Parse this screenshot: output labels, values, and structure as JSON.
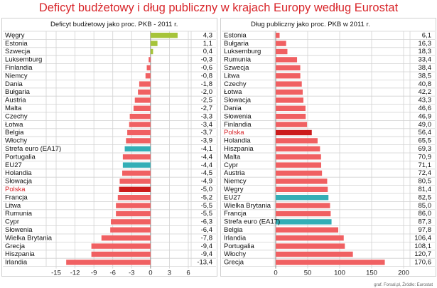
{
  "title": "Deficyt budżetowy i dług publiczny w krajach Europy według Eurostat",
  "source": "graf. Forsal.pl, Źródło: Eurostat",
  "colors": {
    "title": "#d8252a",
    "normal": "#f06062",
    "poland": "#cc1b1b",
    "aggregate": "#33aeb6",
    "positive": "#a6c43a",
    "highlight_label": "#d8252a"
  },
  "chart_data": [
    {
      "type": "bar",
      "orientation": "horizontal",
      "title": "Deficyt budżetowy jako proc. PKB - 2011 r.",
      "xlim": [
        -15,
        6
      ],
      "xticks": [
        -15,
        -12,
        -9,
        -6,
        -3,
        0,
        3,
        6
      ],
      "xtick_labels": [
        "-15",
        "-12",
        "-9",
        "-6",
        "-3",
        "0",
        "3",
        "6"
      ],
      "grid": true,
      "categories": [
        "Węgry",
        "Estonia",
        "Szwecja",
        "Luksemburg",
        "Finlandia",
        "Niemcy",
        "Dania",
        "Bułgaria",
        "Austria",
        "Malta",
        "Czechy",
        "Łotwa",
        "Belgia",
        "Włochy",
        "Strefa euro (EA17)",
        "Portugalia",
        "EU27",
        "Holandia",
        "Słowacja",
        "Polska",
        "Francja",
        "Litwa",
        "Rumunia",
        "Cypr",
        "Słowenia",
        "Wielka Brytania",
        "Grecja",
        "Hiszpania",
        "Irlandia"
      ],
      "values": [
        4.3,
        1.1,
        0.4,
        -0.3,
        -0.6,
        -0.8,
        -1.8,
        -2.0,
        -2.5,
        -2.7,
        -3.3,
        -3.4,
        -3.7,
        -3.9,
        -4.1,
        -4.4,
        -4.4,
        -4.5,
        -4.9,
        -5.0,
        -5.2,
        -5.5,
        -5.5,
        -6.3,
        -6.4,
        -7.8,
        -9.4,
        -9.4,
        -13.4
      ],
      "value_labels": [
        "4,3",
        "1,1",
        "0,4",
        "-0,3",
        "-0,6",
        "-0,8",
        "-1,8",
        "-2,0",
        "-2,5",
        "-2,7",
        "-3,3",
        "-3,4",
        "-3,7",
        "-3,9",
        "-4,1",
        "-4,4",
        "-4,4",
        "-4,5",
        "-4,9",
        "-5,0",
        "-5,2",
        "-5,5",
        "-5,5",
        "-6,3",
        "-6,4",
        "-7,8",
        "-9,4",
        "-9,4",
        "-13,4"
      ],
      "highlight": "Polska",
      "aggregates": [
        "Strefa euro (EA17)",
        "EU27"
      ]
    },
    {
      "type": "bar",
      "orientation": "horizontal",
      "title": "Dług publiczny jako proc. PKB w 2011 r.",
      "xlim": [
        0,
        200
      ],
      "xticks": [
        0,
        50,
        100,
        150,
        200
      ],
      "xtick_labels": [
        "0",
        "50",
        "100",
        "150",
        "200"
      ],
      "grid": true,
      "categories": [
        "Estonia",
        "Bułgaria",
        "Luksemburg",
        "Rumunia",
        "Szwecja",
        "Litwa",
        "Czechy",
        "Łotwa",
        "Słowacja",
        "Dania",
        "Słowenia",
        "Finlandia",
        "Polska",
        "Holandia",
        "Hiszpania",
        "Malta",
        "Cypr",
        "Austria",
        "Niemcy",
        "Węgry",
        "EU27",
        "Wielka Brytania",
        "Francja",
        "Strefa euro (EA17)",
        "Belgia",
        "Irlandia",
        "Portugalia",
        "Włochy",
        "Grecja"
      ],
      "values": [
        6.1,
        16.3,
        18.3,
        33.4,
        38.4,
        38.5,
        40.8,
        42.2,
        43.3,
        46.6,
        46.9,
        49.0,
        56.4,
        65.5,
        69.3,
        70.9,
        71.1,
        72.4,
        80.5,
        81.4,
        82.5,
        85.0,
        86.0,
        87.3,
        97.8,
        106.4,
        108.1,
        120.7,
        170.6
      ],
      "value_labels": [
        "6,1",
        "16,3",
        "18,3",
        "33,4",
        "38,4",
        "38,5",
        "40,8",
        "42,2",
        "43,3",
        "46,6",
        "46,9",
        "49,0",
        "56,4",
        "65,5",
        "69,3",
        "70,9",
        "71,1",
        "72,4",
        "80,5",
        "81,4",
        "82,5",
        "85,0",
        "86,0",
        "87,3",
        "97,8",
        "106,4",
        "108,1",
        "120,7",
        "170,6"
      ],
      "highlight": "Polska",
      "aggregates": [
        "EU27",
        "Strefa euro (EA17)"
      ]
    }
  ]
}
